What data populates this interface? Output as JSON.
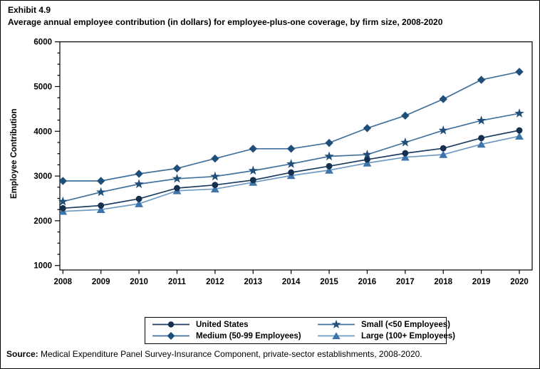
{
  "exhibit_label": "Exhibit 4.9",
  "title": "Average annual employee contribution (in dollars) for employee-plus-one coverage, by firm size, 2008-2020",
  "source": {
    "prefix": "Source:",
    "text": " Medical Expenditure Panel Survey-Insurance Component, private-sector establishments, 2008-2020."
  },
  "chart_data": {
    "type": "line",
    "title": "Average annual employee contribution (in dollars) for employee-plus-one coverage, by firm size, 2008-2020",
    "xlabel": "",
    "ylabel": "Employee Contribution",
    "ylim": [
      1000,
      6000
    ],
    "y_ticks": [
      1000,
      2000,
      3000,
      4000,
      5000,
      6000
    ],
    "y_minor_tick_step": 250,
    "grid": "off",
    "legend_position": "bottom",
    "x": [
      2008,
      2009,
      2010,
      2011,
      2012,
      2013,
      2014,
      2015,
      2016,
      2017,
      2018,
      2019,
      2020
    ],
    "series": [
      {
        "name": "United States",
        "marker": "circle",
        "marker_color": "#14304e",
        "line_color": "#1c3d60",
        "values": [
          2280,
          2340,
          2490,
          2730,
          2800,
          2910,
          3080,
          3220,
          3370,
          3510,
          3620,
          3850,
          4020
        ]
      },
      {
        "name": "Small (<50 Employees)",
        "marker": "star",
        "marker_color": "#1f4e79",
        "line_color": "#41719c",
        "values": [
          2430,
          2640,
          2820,
          2940,
          2990,
          3120,
          3270,
          3440,
          3480,
          3750,
          4020,
          4240,
          4400
        ]
      },
      {
        "name": "Medium (50-99 Employees)",
        "marker": "diamond",
        "marker_color": "#1f4e79",
        "line_color": "#41719c",
        "values": [
          2890,
          2890,
          3050,
          3170,
          3390,
          3610,
          3610,
          3740,
          4070,
          4350,
          4720,
          5150,
          5330
        ]
      },
      {
        "name": "Large (100+ Employees)",
        "marker": "triangle",
        "marker_color": "#3d75ab",
        "line_color": "#6f9ac4",
        "values": [
          2210,
          2250,
          2380,
          2670,
          2710,
          2860,
          3010,
          3130,
          3290,
          3420,
          3480,
          3710,
          3890
        ]
      }
    ],
    "draw_order": [
      "Large (100+ Employees)",
      "Medium (50-99 Employees)",
      "United States",
      "Small (<50 Employees)"
    ],
    "legend_order": [
      "United States",
      "Small (<50 Employees)",
      "Medium (50-99 Employees)",
      "Large (100+ Employees)"
    ]
  }
}
